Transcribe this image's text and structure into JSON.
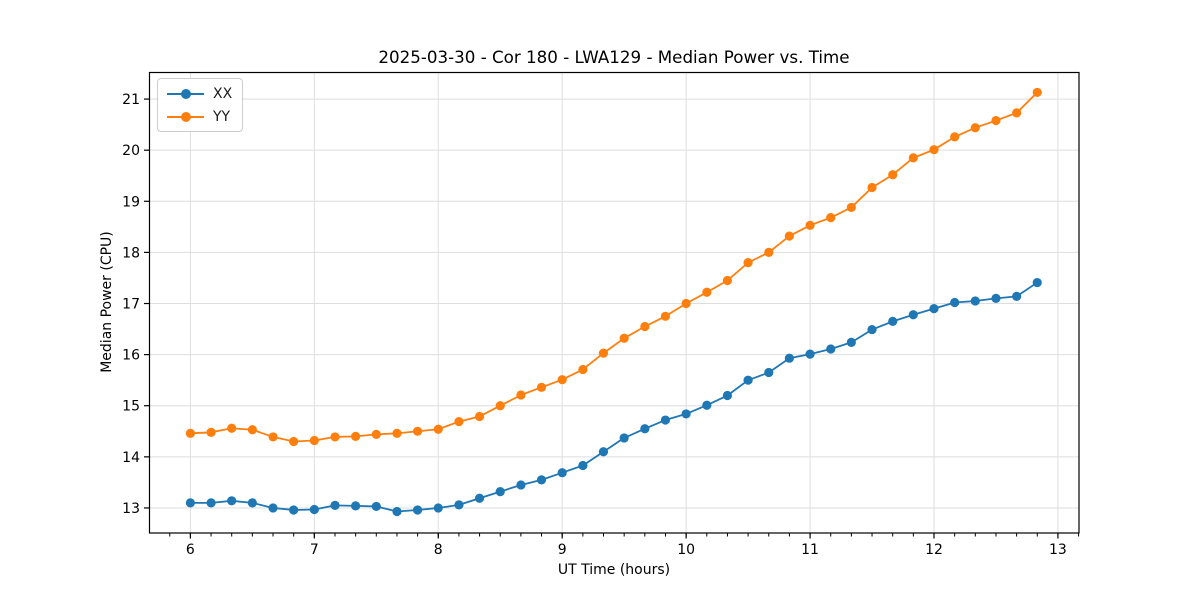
{
  "chart_data": {
    "type": "line",
    "title": "2025-03-30 - Cor 180 - LWA129 - Median Power vs. Time",
    "xlabel": "UT Time (hours)",
    "ylabel": "Median Power (CPU)",
    "xlim": [
      5.67,
      13.17
    ],
    "ylim": [
      12.51,
      21.52
    ],
    "xticks": [
      6,
      7,
      8,
      9,
      10,
      11,
      12,
      13
    ],
    "yticks": [
      13,
      14,
      15,
      16,
      17,
      18,
      19,
      20,
      21
    ],
    "x_minor_step": 0.1666667,
    "grid": true,
    "grid_color": "#dedede",
    "spine_color": "#000000",
    "legend_position": "upper-left",
    "marker": "circle",
    "x": [
      6.0,
      6.167,
      6.333,
      6.5,
      6.667,
      6.833,
      7.0,
      7.167,
      7.333,
      7.5,
      7.667,
      7.833,
      8.0,
      8.167,
      8.333,
      8.5,
      8.667,
      8.833,
      9.0,
      9.167,
      9.333,
      9.5,
      9.667,
      9.833,
      10.0,
      10.167,
      10.333,
      10.5,
      10.667,
      10.833,
      11.0,
      11.167,
      11.333,
      11.5,
      11.667,
      11.833,
      12.0,
      12.167,
      12.333,
      12.5,
      12.667,
      12.833
    ],
    "series": [
      {
        "name": "XX",
        "color": "#1f77b4",
        "values": [
          13.1,
          13.1,
          13.14,
          13.1,
          13.0,
          12.96,
          12.97,
          13.05,
          13.04,
          13.03,
          12.93,
          12.96,
          13.0,
          13.06,
          13.19,
          13.32,
          13.45,
          13.55,
          13.69,
          13.83,
          14.1,
          14.37,
          14.55,
          14.72,
          14.84,
          15.01,
          15.2,
          15.5,
          15.65,
          15.93,
          16.01,
          16.11,
          16.24,
          16.49,
          16.65,
          16.78,
          16.9,
          17.02,
          17.05,
          17.1,
          17.14,
          17.41
        ]
      },
      {
        "name": "YY",
        "color": "#ff7f0e",
        "values": [
          14.46,
          14.48,
          14.56,
          14.53,
          14.39,
          14.3,
          14.32,
          14.39,
          14.4,
          14.44,
          14.46,
          14.5,
          14.54,
          14.69,
          14.79,
          15.0,
          15.21,
          15.36,
          15.51,
          15.71,
          16.03,
          16.32,
          16.55,
          16.75,
          17.0,
          17.22,
          17.45,
          17.8,
          18.0,
          18.32,
          18.53,
          18.68,
          18.88,
          19.27,
          19.52,
          19.85,
          20.01,
          20.26,
          20.44,
          20.58,
          20.73,
          21.13
        ]
      }
    ]
  }
}
